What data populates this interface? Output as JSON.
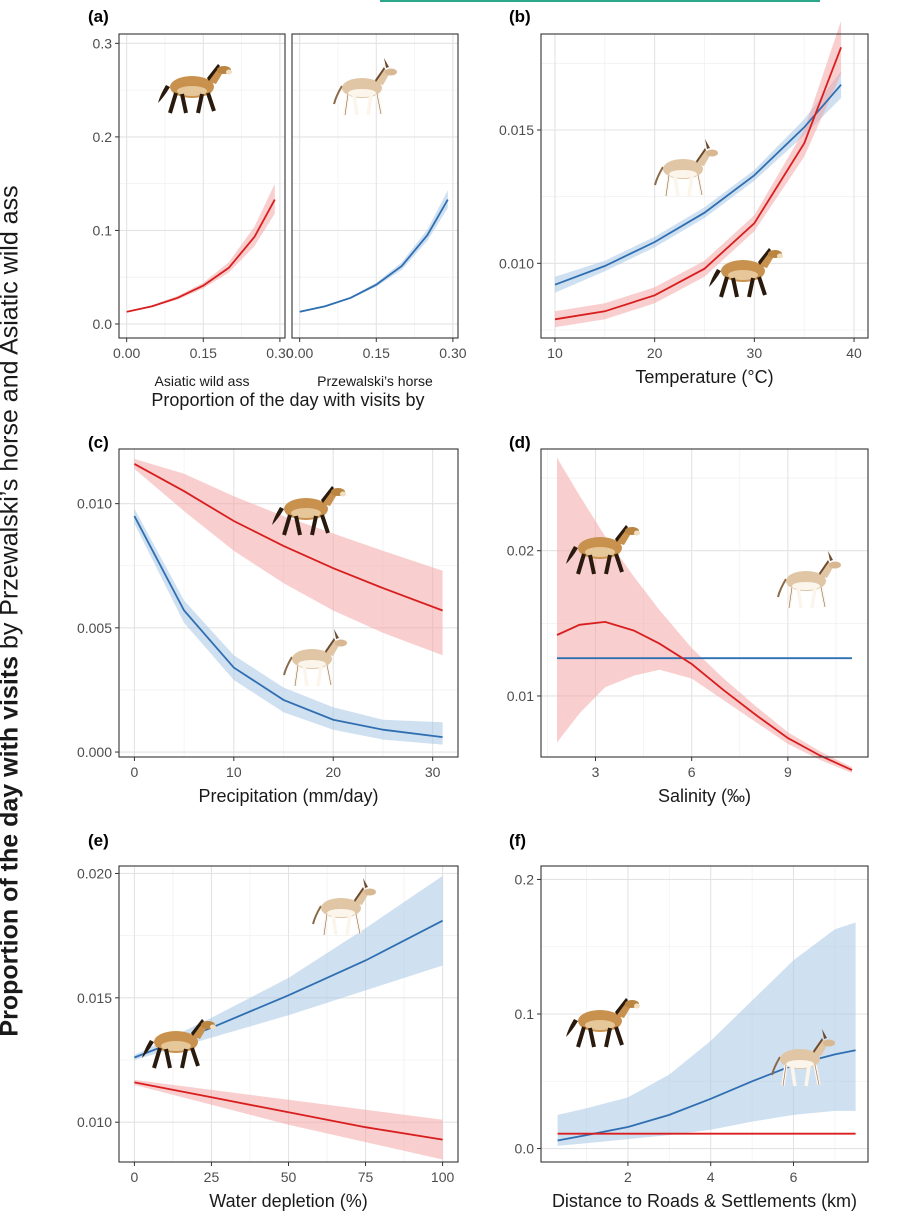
{
  "figure": {
    "y_label_bold": "Proportion of the day with visits",
    "y_label_rest": " by Przewalski’s horse and Asiatic wild ass",
    "colors": {
      "horse": "#d81e1e",
      "ass": "#2f6fb1",
      "horse_band": "#f4a6a6",
      "ass_band": "#a7c6e6"
    }
  },
  "chart_data": [
    {
      "panel": "(a)",
      "type": "line",
      "facets": [
        "Asiatic wild ass",
        "Przewalski’s horse"
      ],
      "xlabel": "Proportion of the day with visits by",
      "ylabel": "",
      "xlim": [
        -0.015,
        0.31
      ],
      "ylim": [
        -0.015,
        0.31
      ],
      "xticks": [
        0.0,
        0.15,
        0.3
      ],
      "xtick_labels": [
        "0.00",
        "0.15",
        "0.30"
      ],
      "yticks": [
        0.0,
        0.1,
        0.2,
        0.3
      ],
      "ytick_labels": [
        "0.0",
        "0.1",
        "0.2",
        "0.3"
      ],
      "series": [
        {
          "facet": "Asiatic wild ass",
          "color": "red",
          "x": [
            0.0,
            0.05,
            0.1,
            0.15,
            0.2,
            0.25,
            0.29
          ],
          "y": [
            0.013,
            0.019,
            0.028,
            0.041,
            0.06,
            0.093,
            0.133
          ],
          "lower": [
            0.012,
            0.018,
            0.026,
            0.038,
            0.055,
            0.083,
            0.118
          ],
          "upper": [
            0.014,
            0.02,
            0.03,
            0.044,
            0.066,
            0.104,
            0.15
          ]
        },
        {
          "facet": "Przewalski’s horse",
          "color": "blue",
          "x": [
            0.0,
            0.05,
            0.1,
            0.15,
            0.2,
            0.25,
            0.29
          ],
          "y": [
            0.013,
            0.019,
            0.028,
            0.042,
            0.062,
            0.095,
            0.133
          ],
          "lower": [
            0.012,
            0.018,
            0.027,
            0.04,
            0.058,
            0.089,
            0.124
          ],
          "upper": [
            0.014,
            0.02,
            0.029,
            0.044,
            0.066,
            0.101,
            0.143
          ]
        }
      ]
    },
    {
      "panel": "(b)",
      "type": "line",
      "xlabel": "Temperature (°C)",
      "ylabel": "",
      "xlim": [
        8.6,
        41.4
      ],
      "ylim": [
        0.0072,
        0.0186
      ],
      "xticks": [
        10,
        20,
        30,
        40
      ],
      "xtick_labels": [
        "10",
        "20",
        "30",
        "40"
      ],
      "yticks": [
        0.01,
        0.015
      ],
      "ytick_labels": [
        "0.010",
        "0.015"
      ],
      "series": [
        {
          "color": "blue",
          "x": [
            10,
            15,
            20,
            25,
            30,
            35,
            38.7
          ],
          "y": [
            0.0092,
            0.0099,
            0.0108,
            0.0119,
            0.0133,
            0.0151,
            0.0167
          ],
          "lower": [
            0.0089,
            0.0097,
            0.0106,
            0.0117,
            0.0131,
            0.0148,
            0.0162
          ],
          "upper": [
            0.0095,
            0.0101,
            0.011,
            0.0121,
            0.0135,
            0.0154,
            0.0172
          ]
        },
        {
          "color": "red",
          "x": [
            10,
            15,
            20,
            25,
            30,
            35,
            38.7
          ],
          "y": [
            0.0079,
            0.0082,
            0.0088,
            0.0098,
            0.0115,
            0.0145,
            0.0181
          ],
          "lower": [
            0.0076,
            0.0079,
            0.0085,
            0.0095,
            0.0112,
            0.014,
            0.0171
          ],
          "upper": [
            0.0082,
            0.0085,
            0.0091,
            0.0101,
            0.0118,
            0.015,
            0.0191
          ]
        }
      ]
    },
    {
      "panel": "(c)",
      "type": "line",
      "xlabel": "Precipitation (mm/day)",
      "ylabel": "",
      "xlim": [
        -1.55,
        32.55
      ],
      "ylim": [
        -0.0002,
        0.0122
      ],
      "xticks": [
        0,
        10,
        20,
        30
      ],
      "xtick_labels": [
        "0",
        "10",
        "20",
        "30"
      ],
      "yticks": [
        0.0,
        0.005,
        0.01
      ],
      "ytick_labels": [
        "0.000",
        "0.005",
        "0.010"
      ],
      "series": [
        {
          "color": "red",
          "x": [
            0,
            5,
            10,
            15,
            20,
            25,
            31
          ],
          "y": [
            0.0116,
            0.0105,
            0.0093,
            0.0083,
            0.0074,
            0.0066,
            0.0057
          ],
          "lower": [
            0.0114,
            0.0097,
            0.0081,
            0.0068,
            0.0057,
            0.0048,
            0.0039
          ],
          "upper": [
            0.0118,
            0.0112,
            0.0103,
            0.0095,
            0.0088,
            0.0081,
            0.0073
          ]
        },
        {
          "color": "blue",
          "x": [
            0,
            5,
            10,
            15,
            20,
            25,
            31
          ],
          "y": [
            0.0095,
            0.0057,
            0.0034,
            0.0021,
            0.0013,
            0.0009,
            0.0006
          ],
          "lower": [
            0.0092,
            0.0052,
            0.0029,
            0.0016,
            0.0009,
            0.0005,
            0.0003
          ],
          "upper": [
            0.0098,
            0.0061,
            0.0039,
            0.0026,
            0.0018,
            0.0013,
            0.0012
          ]
        }
      ]
    },
    {
      "panel": "(d)",
      "type": "line",
      "xlabel": "Salinity (‰)",
      "ylabel": "",
      "xlim": [
        1.3,
        11.5
      ],
      "ylim": [
        0.0058,
        0.027
      ],
      "xticks": [
        3,
        6,
        9
      ],
      "xtick_labels": [
        "3",
        "6",
        "9"
      ],
      "yticks": [
        0.01,
        0.02
      ],
      "ytick_labels": [
        "0.01",
        "0.02"
      ],
      "series": [
        {
          "color": "blue",
          "x": [
            1.8,
            11
          ],
          "y": [
            0.0126,
            0.0126
          ],
          "lower": [
            0.0126,
            0.0126
          ],
          "upper": [
            0.0126,
            0.0126
          ]
        },
        {
          "color": "red",
          "x": [
            1.8,
            2.5,
            3.3,
            4.2,
            5,
            6,
            7,
            8,
            9,
            10,
            11
          ],
          "y": [
            0.0142,
            0.0149,
            0.0151,
            0.0145,
            0.0136,
            0.0122,
            0.0104,
            0.0087,
            0.0071,
            0.0059,
            0.0049
          ],
          "lower": [
            0.0068,
            0.0088,
            0.0106,
            0.0114,
            0.0118,
            0.0112,
            0.0097,
            0.0082,
            0.0067,
            0.0056,
            0.0047
          ],
          "upper": [
            0.0264,
            0.0238,
            0.021,
            0.0182,
            0.0159,
            0.0133,
            0.0112,
            0.0093,
            0.0075,
            0.0062,
            0.0051
          ]
        }
      ]
    },
    {
      "panel": "(e)",
      "type": "line",
      "xlabel": "Water depletion (%)",
      "ylabel": "",
      "xlim": [
        -5,
        105
      ],
      "ylim": [
        0.0084,
        0.0203
      ],
      "xticks": [
        0,
        25,
        50,
        75,
        100
      ],
      "xtick_labels": [
        "0",
        "25",
        "50",
        "75",
        "100"
      ],
      "yticks": [
        0.01,
        0.015,
        0.02
      ],
      "ytick_labels": [
        "0.010",
        "0.015",
        "0.020"
      ],
      "series": [
        {
          "color": "blue",
          "x": [
            0,
            25,
            50,
            75,
            100
          ],
          "y": [
            0.0126,
            0.0138,
            0.0151,
            0.0165,
            0.0181
          ],
          "lower": [
            0.0125,
            0.0134,
            0.0143,
            0.0153,
            0.0163
          ],
          "upper": [
            0.0127,
            0.0142,
            0.0158,
            0.0178,
            0.0199
          ]
        },
        {
          "color": "red",
          "x": [
            0,
            25,
            50,
            75,
            100
          ],
          "y": [
            0.0116,
            0.011,
            0.0104,
            0.0098,
            0.0093
          ],
          "lower": [
            0.0115,
            0.0107,
            0.0099,
            0.0092,
            0.0085
          ],
          "upper": [
            0.0117,
            0.0113,
            0.0109,
            0.0105,
            0.0101
          ]
        }
      ]
    },
    {
      "panel": "(f)",
      "type": "line",
      "xlabel": "Distance to Roads & Settlements (km)",
      "ylabel": "",
      "xlim": [
        -0.1,
        7.8
      ],
      "ylim": [
        -0.01,
        0.21
      ],
      "xticks": [
        2,
        4,
        6
      ],
      "xtick_labels": [
        "2",
        "4",
        "6"
      ],
      "yticks": [
        0.0,
        0.1,
        0.2
      ],
      "ytick_labels": [
        "0.0",
        "0.1",
        "0.2"
      ],
      "series": [
        {
          "color": "blue",
          "x": [
            0.3,
            1,
            2,
            3,
            4,
            5,
            6,
            7,
            7.5
          ],
          "y": [
            0.006,
            0.01,
            0.016,
            0.025,
            0.037,
            0.05,
            0.062,
            0.07,
            0.073
          ],
          "lower": [
            0.002,
            0.004,
            0.007,
            0.01,
            0.014,
            0.02,
            0.025,
            0.028,
            0.028
          ],
          "upper": [
            0.025,
            0.03,
            0.038,
            0.055,
            0.08,
            0.11,
            0.14,
            0.163,
            0.168
          ]
        },
        {
          "color": "red",
          "x": [
            0.3,
            7.5
          ],
          "y": [
            0.011,
            0.011
          ],
          "lower": [
            0.011,
            0.011
          ],
          "upper": [
            0.011,
            0.011
          ]
        }
      ]
    }
  ]
}
